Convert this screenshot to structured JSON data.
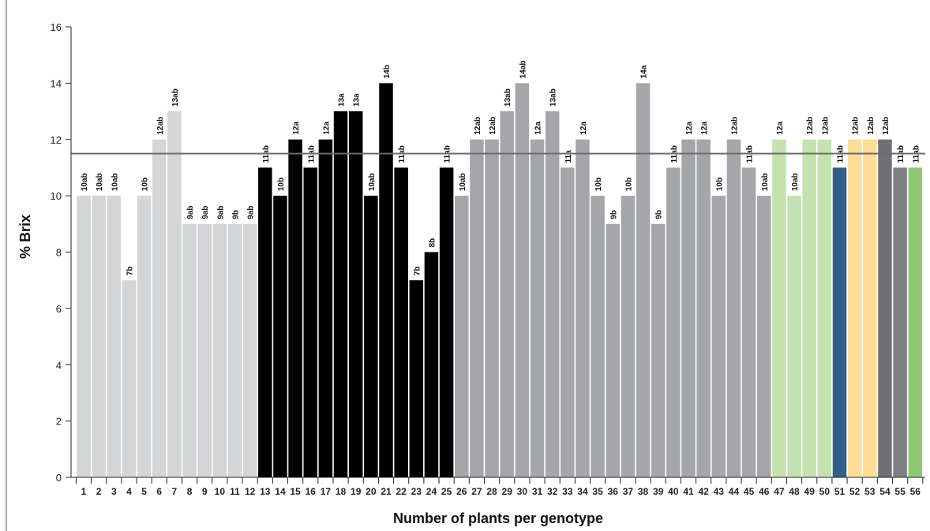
{
  "chart_data": {
    "type": "bar",
    "title": "",
    "xlabel": "Number of plants per genotype",
    "ylabel": "% Brix",
    "ylim": [
      0,
      16
    ],
    "yticks": [
      0,
      2,
      4,
      6,
      8,
      10,
      12,
      14,
      16
    ],
    "grid": false,
    "reference_line": 11.5,
    "categories": [
      "1",
      "2",
      "3",
      "4",
      "5",
      "6",
      "7",
      "8",
      "9",
      "10",
      "11",
      "12",
      "13",
      "14",
      "15",
      "16",
      "17",
      "18",
      "19",
      "20",
      "21",
      "22",
      "23",
      "24",
      "25",
      "26",
      "27",
      "28",
      "29",
      "30",
      "31",
      "32",
      "33",
      "34",
      "35",
      "36",
      "37",
      "38",
      "39",
      "40",
      "41",
      "42",
      "43",
      "44",
      "45",
      "46",
      "47",
      "48",
      "49",
      "50",
      "51",
      "52",
      "53",
      "54",
      "55",
      "56"
    ],
    "values": [
      10,
      10,
      10,
      7,
      10,
      12,
      13,
      9,
      9,
      9,
      9,
      9,
      11,
      10,
      12,
      11,
      12,
      13,
      13,
      10,
      14,
      11,
      7,
      8,
      11,
      10,
      12,
      12,
      13,
      14,
      12,
      13,
      11,
      12,
      10,
      9,
      10,
      14,
      9,
      11,
      12,
      12,
      10,
      12,
      11,
      10,
      12,
      10,
      12,
      12,
      11,
      12,
      12,
      12,
      11,
      11
    ],
    "labels": [
      "10ab",
      "10ab",
      "10ab",
      "7b",
      "10b",
      "12ab",
      "13ab",
      "9ab",
      "9ab",
      "9ab",
      "9b",
      "9ab",
      "11ab",
      "10b",
      "12a",
      "11ab",
      "12a",
      "13a",
      "13a",
      "10ab",
      "14b",
      "11ab",
      "7b",
      "8b",
      "11ab",
      "10ab",
      "12ab",
      "12ab",
      "13ab",
      "14ab",
      "12a",
      "13ab",
      "11a",
      "12a",
      "10b",
      "9b",
      "10b",
      "14a",
      "9b",
      "11ab",
      "12a",
      "12a",
      "10b",
      "12ab",
      "11ab",
      "10ab",
      "12a",
      "10ab",
      "12ab",
      "12ab",
      "11ab",
      "12ab",
      "12ab",
      "12ab",
      "11ab",
      "11ab"
    ],
    "colors": [
      "#d4d5d7",
      "#d4d5d7",
      "#d4d5d7",
      "#d4d5d7",
      "#d4d5d7",
      "#d4d5d7",
      "#d4d5d7",
      "#d4d5d7",
      "#d4d5d7",
      "#d4d5d7",
      "#d4d5d7",
      "#d4d5d7",
      "#000000",
      "#000000",
      "#000000",
      "#000000",
      "#000000",
      "#000000",
      "#000000",
      "#000000",
      "#000000",
      "#000000",
      "#000000",
      "#000000",
      "#000000",
      "#a5a6a9",
      "#a5a6a9",
      "#a5a6a9",
      "#a5a6a9",
      "#a5a6a9",
      "#a5a6a9",
      "#a5a6a9",
      "#a5a6a9",
      "#a5a6a9",
      "#a5a6a9",
      "#a5a6a9",
      "#a5a6a9",
      "#a5a6a9",
      "#a5a6a9",
      "#a5a6a9",
      "#a5a6a9",
      "#a5a6a9",
      "#a5a6a9",
      "#a5a6a9",
      "#a5a6a9",
      "#a5a6a9",
      "#c3e2b0",
      "#c3e2b0",
      "#c3e2b0",
      "#c3e2b0",
      "#2f5f8a",
      "#fedd96",
      "#fedd96",
      "#6f7073",
      "#7f8083",
      "#8fc872"
    ]
  }
}
